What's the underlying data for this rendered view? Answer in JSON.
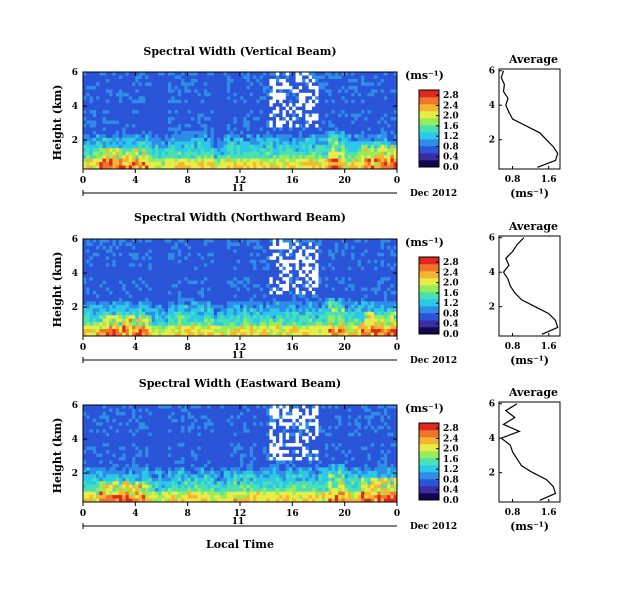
{
  "figure": {
    "x_axis_label": "Local Time",
    "date_label": "Dec 2012",
    "day_label": "11",
    "height_axis_label": "Height (km)",
    "unit_label": "(ms⁻¹)",
    "average_title": "Average",
    "average_xlabel": "(ms⁻¹)"
  },
  "palette": [
    "#14064c",
    "#3b2ea5",
    "#2b55d8",
    "#2f8de8",
    "#2cc8ea",
    "#4ae0b4",
    "#96ec5a",
    "#e8ec46",
    "#f6b531",
    "#f2742b",
    "#e1281e"
  ],
  "chart_data": [
    {
      "type": "heatmap",
      "title": "Spectral Width (Vertical Beam)",
      "xlabel": "Local Time",
      "ylabel": "Height (km)",
      "x_ticks": [
        "0",
        "4",
        "8",
        "12",
        "16",
        "20",
        "0"
      ],
      "y_ticks": [
        "2",
        "4",
        "6"
      ],
      "xlim": [
        0,
        24
      ],
      "ylim": [
        0.3,
        6
      ],
      "colorbar": {
        "unit": "(ms⁻¹)",
        "ticks": [
          "0.0",
          "0.4",
          "0.8",
          "1.2",
          "1.6",
          "2.0",
          "2.4",
          "2.8"
        ],
        "range": [
          0,
          3.0
        ]
      },
      "average_profile": {
        "title": "Average",
        "xlabel": "(ms⁻¹)",
        "x_ticks": [
          "0.8",
          "1.6"
        ],
        "y_ticks": [
          "2",
          "4",
          "6"
        ],
        "xlim": [
          0.5,
          1.85
        ],
        "height_km": [
          0.4,
          0.8,
          1.2,
          1.6,
          2.0,
          2.4,
          2.8,
          3.2,
          3.6,
          4.0,
          4.4,
          4.8,
          5.2,
          5.6,
          6.0
        ],
        "width_ms": [
          1.35,
          1.75,
          1.8,
          1.7,
          1.55,
          1.4,
          1.1,
          0.8,
          0.72,
          0.65,
          0.7,
          0.6,
          0.62,
          0.55,
          0.6
        ]
      }
    },
    {
      "type": "heatmap",
      "title": "Spectral Width (Northward Beam)",
      "xlabel": "Local Time",
      "ylabel": "Height (km)",
      "x_ticks": [
        "0",
        "4",
        "8",
        "12",
        "16",
        "20",
        "0"
      ],
      "y_ticks": [
        "2",
        "4",
        "6"
      ],
      "xlim": [
        0,
        24
      ],
      "ylim": [
        0.3,
        6
      ],
      "colorbar": {
        "unit": "(ms⁻¹)",
        "ticks": [
          "0.0",
          "0.4",
          "0.8",
          "1.2",
          "1.6",
          "2.0",
          "2.4",
          "2.8"
        ],
        "range": [
          0,
          3.0
        ]
      },
      "average_profile": {
        "title": "Average",
        "xlabel": "(ms⁻¹)",
        "x_ticks": [
          "0.8",
          "1.6"
        ],
        "y_ticks": [
          "2",
          "4",
          "6"
        ],
        "xlim": [
          0.5,
          1.85
        ],
        "height_km": [
          0.4,
          0.8,
          1.2,
          1.6,
          2.0,
          2.4,
          2.8,
          3.2,
          3.6,
          4.0,
          4.4,
          4.8,
          5.2,
          5.6,
          6.0
        ],
        "width_ms": [
          1.45,
          1.8,
          1.75,
          1.6,
          1.3,
          1.0,
          0.85,
          0.75,
          0.7,
          0.6,
          0.72,
          0.65,
          0.8,
          0.9,
          1.05
        ]
      }
    },
    {
      "type": "heatmap",
      "title": "Spectral Width (Eastward Beam)",
      "xlabel": "Local Time",
      "ylabel": "Height (km)",
      "x_ticks": [
        "0",
        "4",
        "8",
        "12",
        "16",
        "20",
        "0"
      ],
      "y_ticks": [
        "2",
        "4",
        "6"
      ],
      "xlim": [
        0,
        24
      ],
      "ylim": [
        0.3,
        6
      ],
      "colorbar": {
        "unit": "(ms⁻¹)",
        "ticks": [
          "0.0",
          "0.4",
          "0.8",
          "1.2",
          "1.6",
          "2.0",
          "2.4",
          "2.8"
        ],
        "range": [
          0,
          3.0
        ]
      },
      "average_profile": {
        "title": "Average",
        "xlabel": "(ms⁻¹)",
        "x_ticks": [
          "0.8",
          "1.6"
        ],
        "y_ticks": [
          "2",
          "4",
          "6"
        ],
        "xlim": [
          0.5,
          1.85
        ],
        "height_km": [
          0.4,
          0.8,
          1.2,
          1.6,
          2.0,
          2.4,
          2.8,
          3.2,
          3.6,
          4.0,
          4.4,
          4.8,
          5.2,
          5.6,
          6.0
        ],
        "width_ms": [
          1.4,
          1.75,
          1.7,
          1.55,
          1.25,
          1.0,
          0.9,
          0.8,
          0.75,
          0.55,
          0.95,
          0.6,
          0.85,
          0.65,
          0.9
        ]
      }
    }
  ]
}
